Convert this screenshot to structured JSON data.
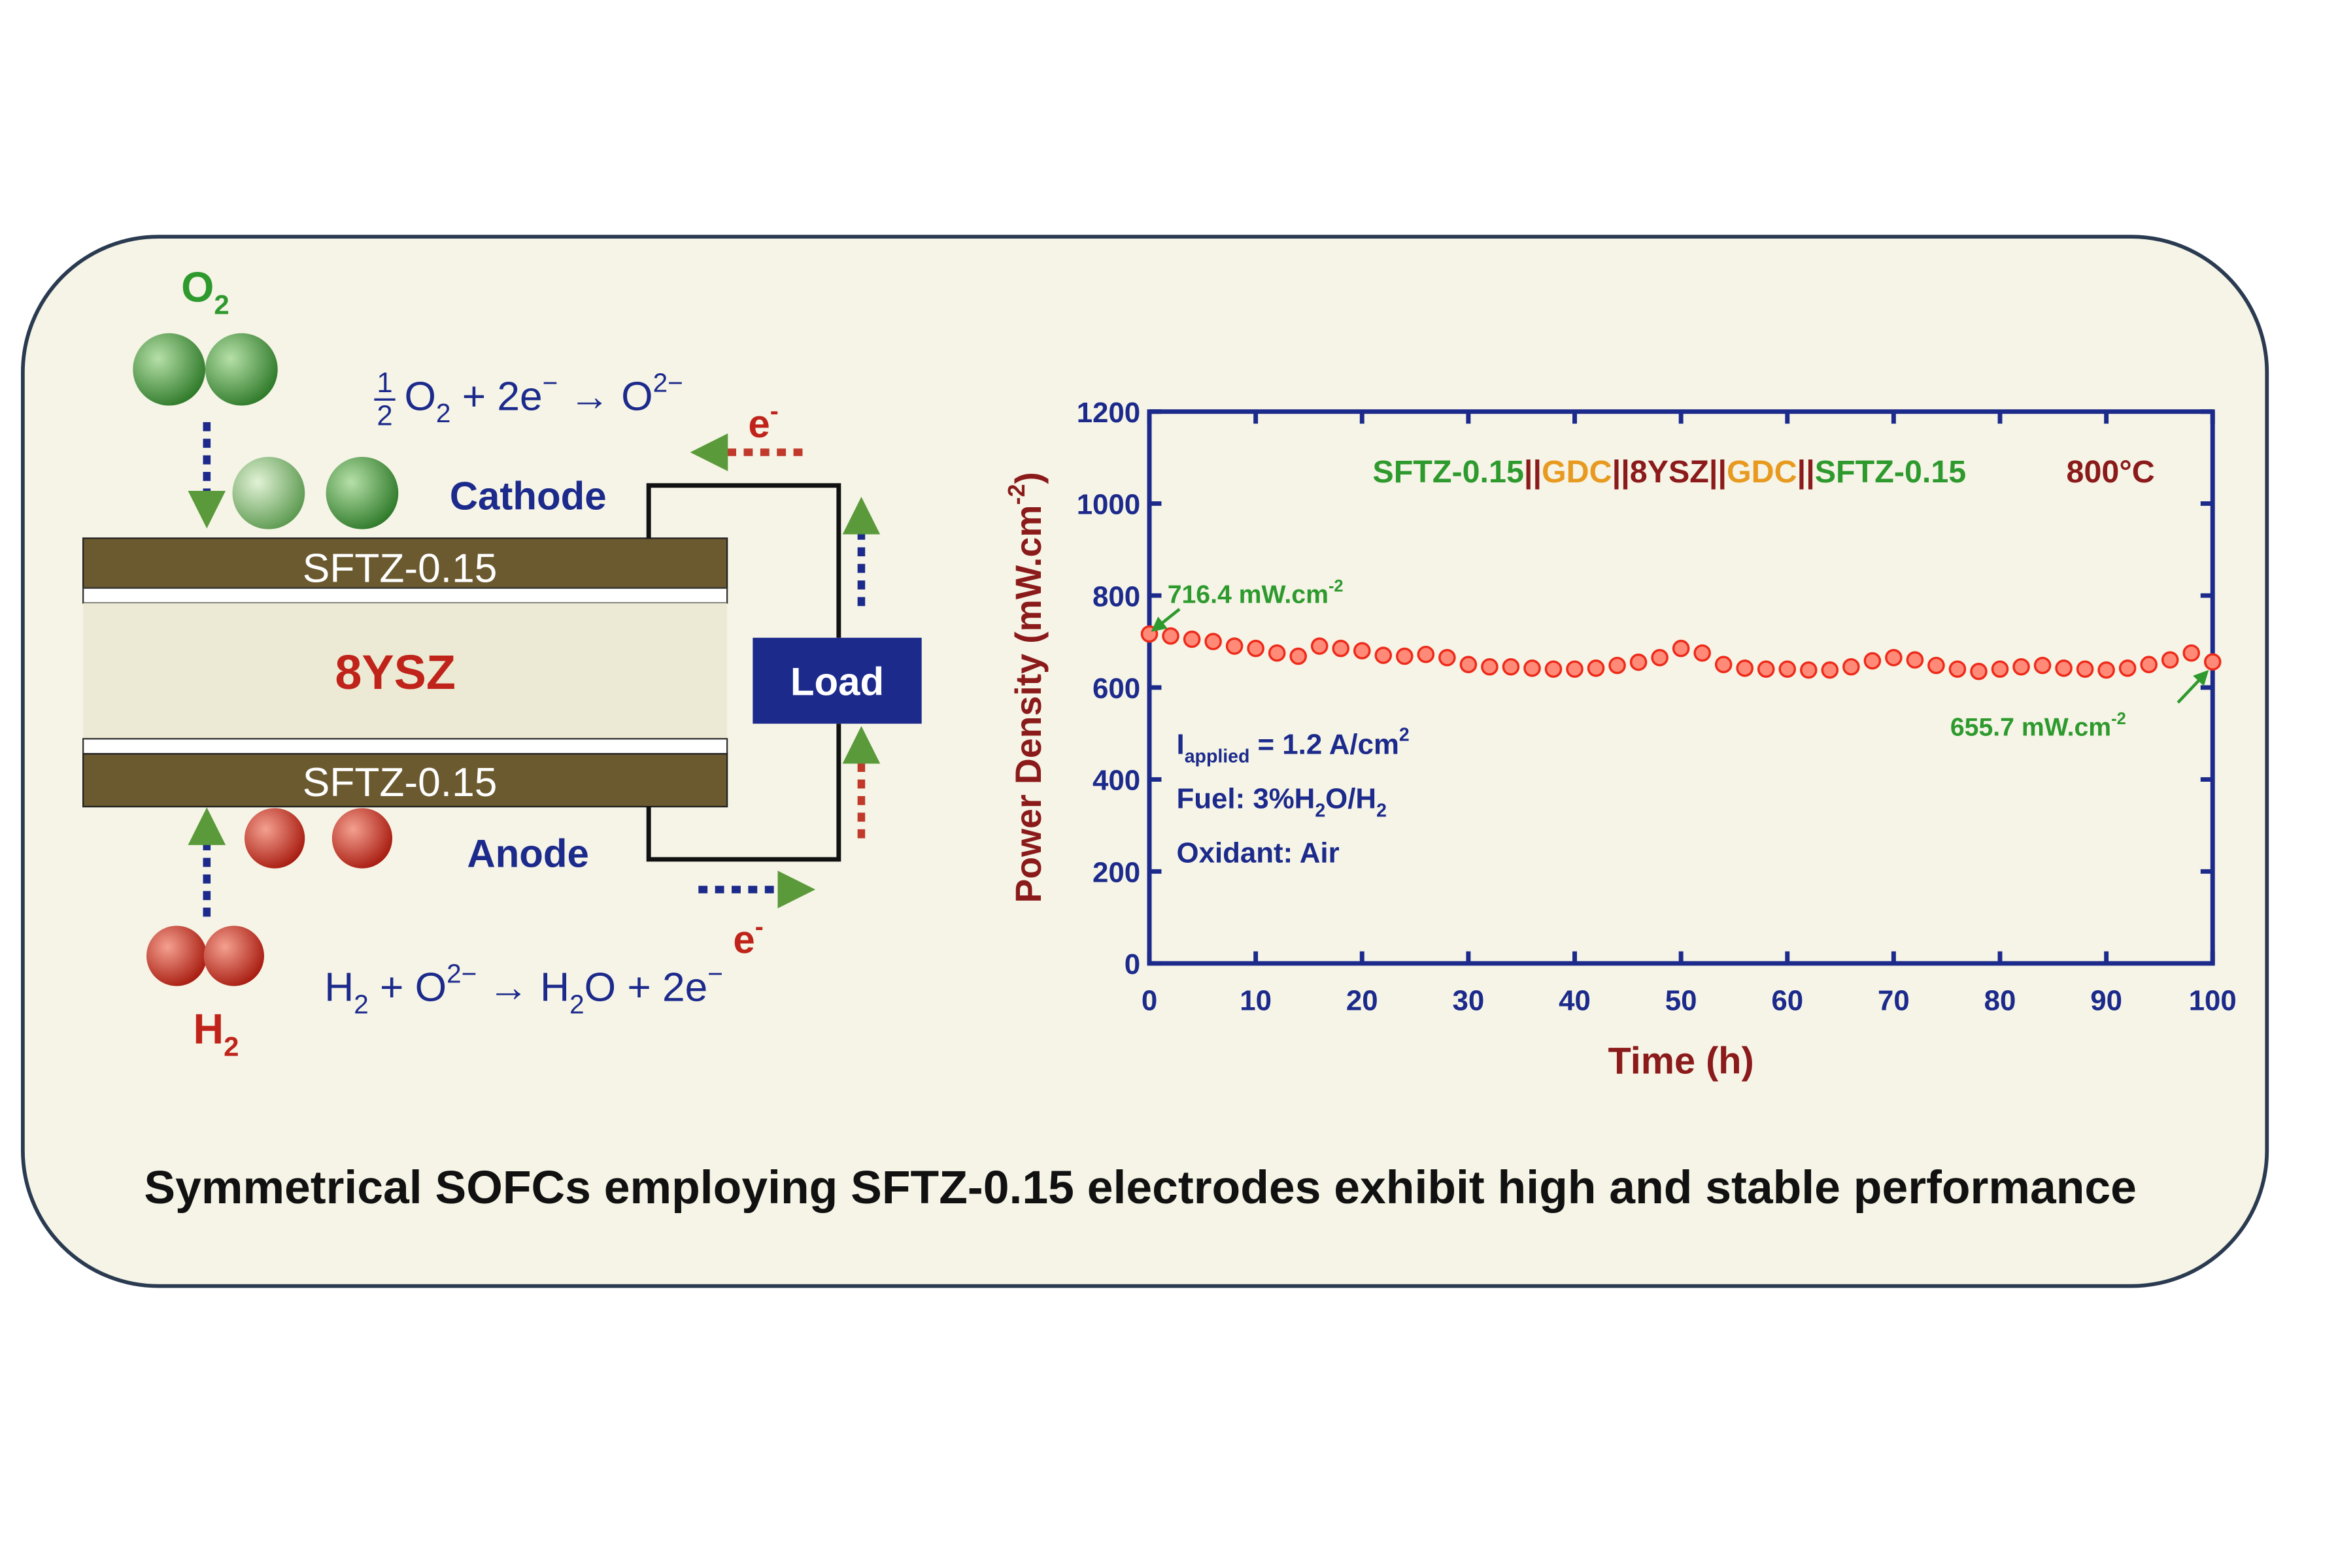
{
  "diagram": {
    "o2": [
      "O",
      {
        "sub": "2"
      }
    ],
    "cathode_equation": [
      {
        "frac": [
          "1",
          "2"
        ]
      },
      "O",
      {
        "sub": "2"
      },
      " + 2e",
      {
        "sup": "−"
      },
      " → O",
      {
        "sup": "2−"
      }
    ],
    "electron_top": [
      "e",
      {
        "sup": "-"
      }
    ],
    "cathode": "Cathode",
    "cathode_layer": "SFTZ-0.15",
    "electrolyte": "8YSZ",
    "load": "Load",
    "anode_layer": "SFTZ-0.15",
    "anode": "Anode",
    "electron_bottom": [
      "e",
      {
        "sup": "-"
      }
    ],
    "anode_equation": [
      "H",
      {
        "sub": "2"
      },
      " + O",
      {
        "sup": "2−"
      },
      " → H",
      {
        "sub": "2"
      },
      "O + 2e",
      {
        "sup": "−"
      }
    ],
    "h2": [
      "H",
      {
        "sub": "2"
      }
    ]
  },
  "chart_data": {
    "type": "scatter",
    "title": [
      {
        "text": "SFTZ-0.15",
        "color": "#2e9a2e"
      },
      {
        "text": "||",
        "color": "#8b1a1a"
      },
      {
        "text": "GDC",
        "color": "#e89a20"
      },
      {
        "text": "||8YSZ||",
        "color": "#8b1a1a"
      },
      {
        "text": "GDC",
        "color": "#e89a20"
      },
      {
        "text": "||",
        "color": "#8b1a1a"
      },
      {
        "text": "SFTZ-0.15",
        "color": "#2e9a2e"
      }
    ],
    "temperature": "800°C",
    "xlabel": "Time (h)",
    "ylabel": [
      "Power Density (mW.cm",
      {
        "sup": "-2"
      },
      ")"
    ],
    "annotations": [
      [
        "716.4 mW.cm",
        {
          "sup": "-2"
        }
      ],
      [
        "655.7 mW.cm",
        {
          "sup": "-2"
        }
      ]
    ],
    "conditions": [
      [
        "I",
        {
          "sub": "applied"
        },
        " = 1.2 A/cm",
        {
          "sup": "2"
        }
      ],
      [
        "Fuel: 3%H",
        {
          "sub": "2"
        },
        "O/H",
        {
          "sub": "2"
        }
      ],
      [
        "Oxidant: Air"
      ]
    ],
    "x": [
      0,
      2,
      4,
      6,
      8,
      10,
      12,
      14,
      16,
      18,
      20,
      22,
      24,
      26,
      28,
      30,
      32,
      34,
      36,
      38,
      40,
      42,
      44,
      46,
      48,
      50,
      52,
      54,
      56,
      58,
      60,
      62,
      64,
      66,
      68,
      70,
      72,
      74,
      76,
      78,
      80,
      82,
      84,
      86,
      88,
      90,
      92,
      94,
      96,
      98,
      100
    ],
    "values": [
      716.4,
      712,
      705,
      700,
      690,
      685,
      675,
      668,
      690,
      685,
      680,
      670,
      668,
      672,
      665,
      650,
      645,
      645,
      642,
      640,
      640,
      642,
      648,
      655,
      665,
      685,
      675,
      650,
      642,
      640,
      640,
      638,
      638,
      645,
      658,
      665,
      660,
      648,
      640,
      635,
      640,
      645,
      648,
      642,
      640,
      638,
      642,
      650,
      660,
      675,
      655.7
    ],
    "color": "#ee2a1a",
    "xlim": [
      0,
      100
    ],
    "ylim": [
      0,
      1200
    ],
    "xticks": [
      0,
      10,
      20,
      30,
      40,
      50,
      60,
      70,
      80,
      90,
      100
    ],
    "yticks": [
      0,
      200,
      400,
      600,
      800,
      1000,
      1200
    ],
    "grid": false
  },
  "caption": "Symmetrical SOFCs employing SFTZ-0.15 electrodes exhibit high and stable performance"
}
